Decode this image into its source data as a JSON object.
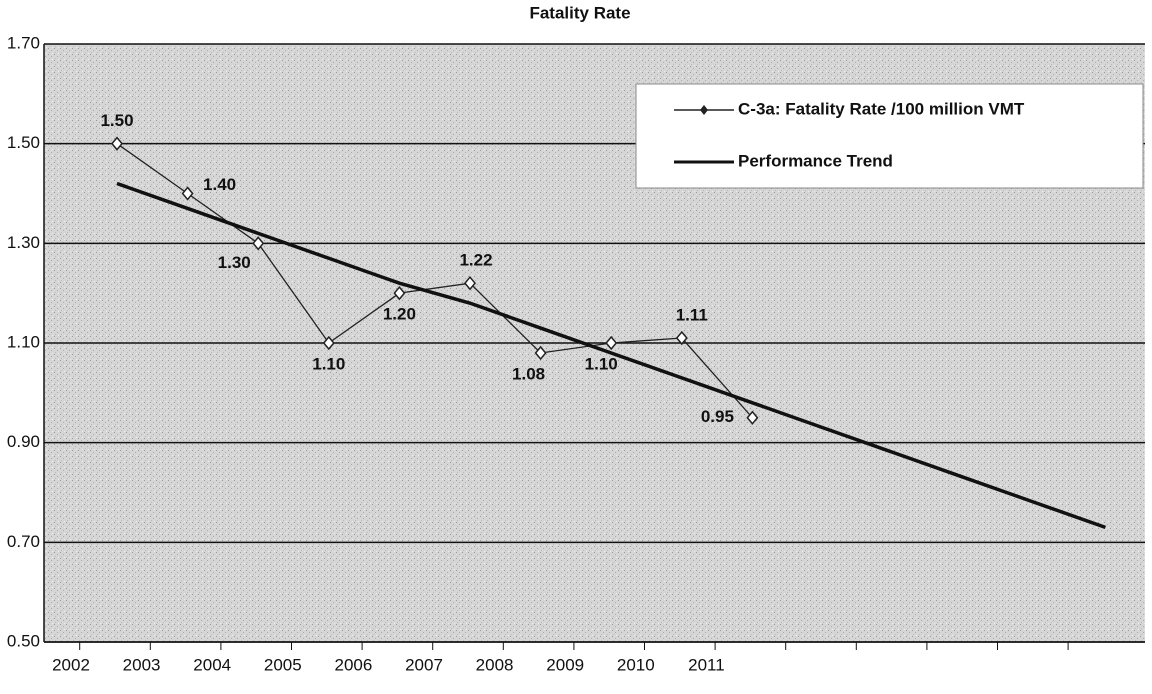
{
  "chart_data": {
    "type": "line",
    "title": "Fatality Rate",
    "categories": [
      "2002",
      "2003",
      "2004",
      "2005",
      "2006",
      "2007",
      "2008",
      "2009",
      "2010",
      "2011",
      null,
      null,
      null,
      null,
      null
    ],
    "series": [
      {
        "name": "C-3a: Fatality Rate /100 million VMT",
        "color": "#222222",
        "marker": "diamond",
        "values": [
          1.5,
          1.4,
          1.3,
          1.1,
          1.2,
          1.22,
          1.08,
          1.1,
          1.11,
          0.95,
          null,
          null,
          null,
          null,
          null
        ],
        "value_labels": [
          "1.50",
          "1.40",
          "1.30",
          "1.10",
          "1.20",
          "1.22",
          "1.08",
          "1.10",
          "1.11",
          "0.95",
          null,
          null,
          null,
          null,
          null
        ]
      },
      {
        "name": "Performance Trend",
        "color": "#111111",
        "values": [
          1.42,
          1.37,
          1.32,
          1.27,
          1.22,
          1.18,
          1.13,
          1.08,
          1.03,
          0.98,
          0.93,
          0.88,
          0.83,
          0.78,
          0.73
        ]
      }
    ],
    "ylim": [
      0.5,
      1.7
    ],
    "yticks": [
      {
        "value": 0.5,
        "label": "0.50"
      },
      {
        "value": 0.7,
        "label": "0.70"
      },
      {
        "value": 0.9,
        "label": "0.90"
      },
      {
        "value": 1.1,
        "label": "1.10"
      },
      {
        "value": 1.3,
        "label": "1.30"
      },
      {
        "value": 1.5,
        "label": "1.50"
      },
      {
        "value": 1.7,
        "label": "1.70"
      }
    ],
    "grid": true,
    "legend": "upper right"
  }
}
